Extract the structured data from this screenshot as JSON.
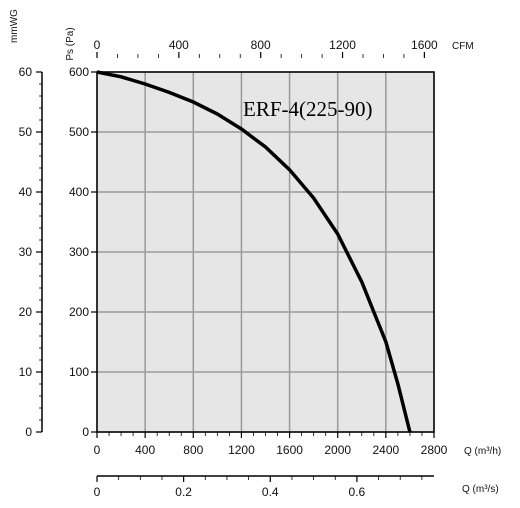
{
  "chart_data": {
    "type": "line",
    "title": "ERF-4(225-90)",
    "axes": {
      "ps_pa": {
        "label": "Ps (Pa)",
        "range": [
          0,
          600
        ],
        "ticks": [
          "0",
          "100",
          "200",
          "300",
          "400",
          "500",
          "600"
        ]
      },
      "mmwg": {
        "label": "mmWG",
        "range": [
          0,
          60
        ],
        "ticks": [
          "0",
          "10",
          "20",
          "30",
          "40",
          "50",
          "60"
        ]
      },
      "q_m3h": {
        "label": "Q (m³/h)",
        "range": [
          0,
          2800
        ],
        "ticks": [
          "0",
          "400",
          "800",
          "1200",
          "1600",
          "2000",
          "2400",
          "2800"
        ]
      },
      "cfm": {
        "label": "CFM",
        "range": [
          0,
          1647
        ],
        "ticks": [
          "0",
          "400",
          "800",
          "1200",
          "1600"
        ]
      },
      "q_m3s": {
        "label": "Q (m³/s)",
        "range": [
          0,
          0.778
        ],
        "ticks": [
          "0",
          "0.2",
          "0.4",
          "0.6"
        ]
      }
    },
    "grid": true,
    "series": [
      {
        "x": [
          0,
          200,
          400,
          600,
          800,
          1000,
          1200,
          1400,
          1600,
          1800,
          2000,
          2200,
          2400,
          2500,
          2600
        ],
        "y": [
          600,
          592,
          580,
          566,
          550,
          530,
          505,
          475,
          437,
          390,
          330,
          250,
          150,
          80,
          0
        ]
      }
    ]
  }
}
